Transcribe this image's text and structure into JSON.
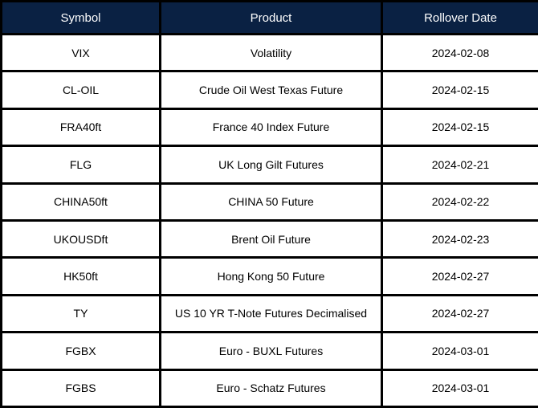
{
  "colors": {
    "header_bg": "#0a2143",
    "header_text": "#ffffff",
    "border": "#000000",
    "row_bg": "#ffffff",
    "row_text": "#000000"
  },
  "table": {
    "columns": [
      "Symbol",
      "Product",
      "Rollover Date"
    ],
    "rows": [
      {
        "symbol": "VIX",
        "product": "Volatility",
        "rollover_date": "2024-02-08"
      },
      {
        "symbol": "CL-OIL",
        "product": "Crude Oil West Texas Future",
        "rollover_date": "2024-02-15"
      },
      {
        "symbol": "FRA40ft",
        "product": "France 40 Index Future",
        "rollover_date": "2024-02-15"
      },
      {
        "symbol": "FLG",
        "product": "UK Long Gilt Futures",
        "rollover_date": "2024-02-21"
      },
      {
        "symbol": "CHINA50ft",
        "product": "CHINA 50 Future",
        "rollover_date": "2024-02-22"
      },
      {
        "symbol": "UKOUSDft",
        "product": "Brent Oil Future",
        "rollover_date": "2024-02-23"
      },
      {
        "symbol": "HK50ft",
        "product": "Hong Kong 50 Future",
        "rollover_date": "2024-02-27"
      },
      {
        "symbol": "TY",
        "product": "US 10 YR T-Note Futures Decimalised",
        "rollover_date": "2024-02-27"
      },
      {
        "symbol": "FGBX",
        "product": "Euro - BUXL Futures",
        "rollover_date": "2024-03-01"
      },
      {
        "symbol": "FGBS",
        "product": "Euro - Schatz Futures",
        "rollover_date": "2024-03-01"
      }
    ]
  }
}
